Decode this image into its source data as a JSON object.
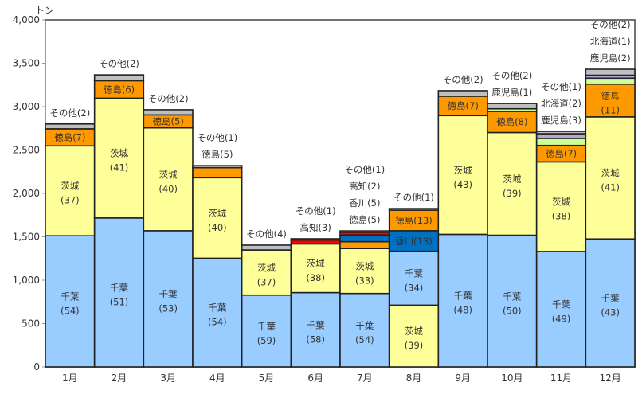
{
  "chart_data": {
    "type": "bar",
    "stacked": true,
    "title": "",
    "ylabel": "トン",
    "xlabel": "",
    "ylim": [
      0,
      4000
    ],
    "yticks": [
      0,
      500,
      1000,
      1500,
      2000,
      2500,
      3000,
      3500,
      4000
    ],
    "ytick_labels": [
      "0",
      "500",
      "1,000",
      "1,500",
      "2,000",
      "2,500",
      "3,000",
      "3,500",
      "4,000"
    ],
    "grid": false,
    "colors": {
      "千葉": "#99CCFF",
      "茨城": "#FFFF99",
      "徳島": "#FF9900",
      "香川": "#0070C0",
      "高知": "#FF0000",
      "鹿児島": "#CCFF99",
      "北海道": "#B4A7D6",
      "その他": "#BFBFBF"
    },
    "categories": [
      "1月",
      "2月",
      "3月",
      "4月",
      "5月",
      "6月",
      "7月",
      "8月",
      "9月",
      "10月",
      "11月",
      "12月"
    ],
    "bars": [
      {
        "month": "1月",
        "segments": [
          {
            "name": "千葉",
            "value": 1512,
            "pct": 54,
            "label": "inside-wrap"
          },
          {
            "name": "茨城",
            "value": 1036,
            "pct": 37,
            "label": "inside-wrap"
          },
          {
            "name": "徳島",
            "value": 196,
            "pct": 7,
            "label": "inside"
          },
          {
            "name": "その他",
            "value": 56,
            "pct": 2,
            "label": "above"
          }
        ]
      },
      {
        "month": "2月",
        "segments": [
          {
            "name": "千葉",
            "value": 1717,
            "pct": 51,
            "label": "inside-wrap"
          },
          {
            "name": "茨城",
            "value": 1380,
            "pct": 41,
            "label": "inside-wrap"
          },
          {
            "name": "徳島",
            "value": 202,
            "pct": 6,
            "label": "inside"
          },
          {
            "name": "その他",
            "value": 67,
            "pct": 2,
            "label": "above"
          }
        ]
      },
      {
        "month": "3月",
        "segments": [
          {
            "name": "千葉",
            "value": 1570,
            "pct": 53,
            "label": "inside-wrap"
          },
          {
            "name": "茨城",
            "value": 1185,
            "pct": 40,
            "label": "inside-wrap"
          },
          {
            "name": "徳島",
            "value": 150,
            "pct": 5,
            "label": "inside"
          },
          {
            "name": "その他",
            "value": 59,
            "pct": 2,
            "label": "above"
          }
        ]
      },
      {
        "month": "4月",
        "segments": [
          {
            "name": "千葉",
            "value": 1253,
            "pct": 54,
            "label": "inside-wrap"
          },
          {
            "name": "茨城",
            "value": 928,
            "pct": 40,
            "label": "inside-wrap"
          },
          {
            "name": "徳島",
            "value": 116,
            "pct": 5,
            "label": "above"
          },
          {
            "name": "その他",
            "value": 23,
            "pct": 1,
            "label": "above"
          }
        ]
      },
      {
        "month": "5月",
        "segments": [
          {
            "name": "千葉",
            "value": 828,
            "pct": 59,
            "label": "inside-wrap"
          },
          {
            "name": "茨城",
            "value": 520,
            "pct": 37,
            "label": "inside-wrap"
          },
          {
            "name": "その他",
            "value": 56,
            "pct": 4,
            "label": "above"
          }
        ]
      },
      {
        "month": "6月",
        "segments": [
          {
            "name": "千葉",
            "value": 857,
            "pct": 58,
            "label": "inside-wrap"
          },
          {
            "name": "茨城",
            "value": 561,
            "pct": 38,
            "label": "inside-wrap"
          },
          {
            "name": "高知",
            "value": 44,
            "pct": 3,
            "label": "above"
          },
          {
            "name": "その他",
            "value": 15,
            "pct": 1,
            "label": "above"
          }
        ]
      },
      {
        "month": "7月",
        "segments": [
          {
            "name": "千葉",
            "value": 847,
            "pct": 54,
            "label": "inside-wrap"
          },
          {
            "name": "茨城",
            "value": 518,
            "pct": 33,
            "label": "inside-wrap"
          },
          {
            "name": "徳島",
            "value": 78,
            "pct": 5,
            "label": "above"
          },
          {
            "name": "香川",
            "value": 78,
            "pct": 5,
            "label": "above"
          },
          {
            "name": "高知",
            "value": 31,
            "pct": 2,
            "label": "above"
          },
          {
            "name": "その他",
            "value": 16,
            "pct": 1,
            "label": "above"
          }
        ]
      },
      {
        "month": "8月",
        "segments": [
          {
            "name": "茨城",
            "value": 712,
            "pct": 39,
            "label": "inside-wrap"
          },
          {
            "name": "千葉",
            "value": 621,
            "pct": 34,
            "label": "inside-wrap"
          },
          {
            "name": "香川",
            "value": 237,
            "pct": 13,
            "label": "inside"
          },
          {
            "name": "徳島",
            "value": 237,
            "pct": 13,
            "label": "inside"
          },
          {
            "name": "その他",
            "value": 18,
            "pct": 1,
            "label": "above"
          }
        ]
      },
      {
        "month": "9月",
        "segments": [
          {
            "name": "千葉",
            "value": 1528,
            "pct": 48,
            "label": "inside-wrap"
          },
          {
            "name": "茨城",
            "value": 1369,
            "pct": 43,
            "label": "inside-wrap"
          },
          {
            "name": "徳島",
            "value": 223,
            "pct": 7,
            "label": "inside"
          },
          {
            "name": "その他",
            "value": 64,
            "pct": 2,
            "label": "above"
          }
        ]
      },
      {
        "month": "10月",
        "segments": [
          {
            "name": "千葉",
            "value": 1518,
            "pct": 50,
            "label": "inside-wrap"
          },
          {
            "name": "茨城",
            "value": 1184,
            "pct": 39,
            "label": "inside-wrap"
          },
          {
            "name": "徳島",
            "value": 243,
            "pct": 8,
            "label": "inside"
          },
          {
            "name": "鹿児島",
            "value": 30,
            "pct": 1,
            "label": "above"
          },
          {
            "name": "その他",
            "value": 61,
            "pct": 2,
            "label": "above"
          }
        ]
      },
      {
        "month": "11月",
        "segments": [
          {
            "name": "千葉",
            "value": 1331,
            "pct": 49,
            "label": "inside-wrap"
          },
          {
            "name": "茨城",
            "value": 1032,
            "pct": 38,
            "label": "inside-wrap"
          },
          {
            "name": "徳島",
            "value": 190,
            "pct": 7,
            "label": "inside"
          },
          {
            "name": "鹿児島",
            "value": 81,
            "pct": 3,
            "label": "above"
          },
          {
            "name": "北海道",
            "value": 54,
            "pct": 2,
            "label": "above"
          },
          {
            "name": "その他",
            "value": 27,
            "pct": 1,
            "label": "above"
          }
        ]
      },
      {
        "month": "12月",
        "segments": [
          {
            "name": "千葉",
            "value": 1475,
            "pct": 43,
            "label": "inside-wrap"
          },
          {
            "name": "茨城",
            "value": 1407,
            "pct": 41,
            "label": "inside-wrap"
          },
          {
            "name": "徳島",
            "value": 377,
            "pct": 11,
            "label": "inside-wrap"
          },
          {
            "name": "鹿児島",
            "value": 69,
            "pct": 2,
            "label": "above"
          },
          {
            "name": "北海道",
            "value": 34,
            "pct": 1,
            "label": "above"
          },
          {
            "name": "その他",
            "value": 69,
            "pct": 2,
            "label": "above"
          }
        ]
      }
    ]
  }
}
